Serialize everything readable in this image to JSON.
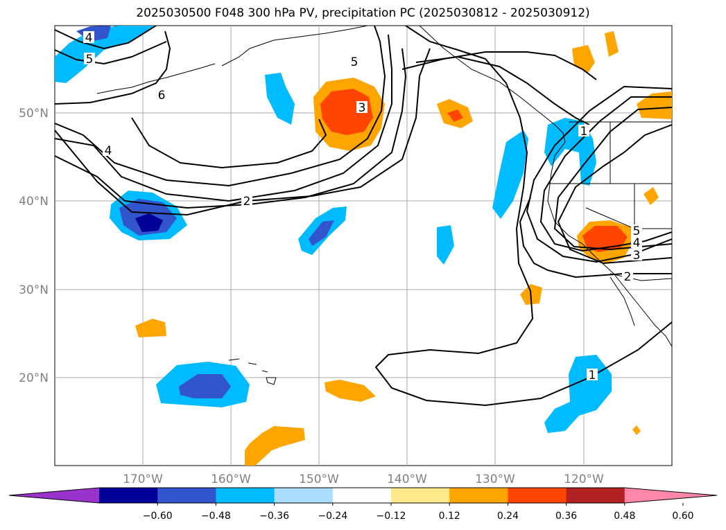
{
  "title": "2025030500 F048 300 hPa PV, precipitation PC (2025030812 - 2025030912)",
  "map": {
    "lat_labels": [
      "50°N",
      "40°N",
      "30°N",
      "20°N"
    ],
    "lon_labels": [
      "170°W",
      "160°W",
      "150°W",
      "140°W",
      "130°W",
      "120°W"
    ],
    "pv_contour_labels": [
      "4",
      "5",
      "6",
      "4",
      "2",
      "5",
      "3",
      "1",
      "5",
      "4",
      "3",
      "2",
      "1"
    ]
  },
  "colorbar": {
    "ticks": [
      "−0.60",
      "−0.48",
      "−0.36",
      "−0.24",
      "−0.12",
      "0.12",
      "0.24",
      "0.36",
      "0.48",
      "0.60"
    ],
    "colors": [
      "#9933cc",
      "#000099",
      "#3355cc",
      "#00bbff",
      "#aaddff",
      "#ffffff",
      "#ffe98a",
      "#ffa500",
      "#ff4500",
      "#b22222",
      "#ff88aa"
    ]
  }
}
